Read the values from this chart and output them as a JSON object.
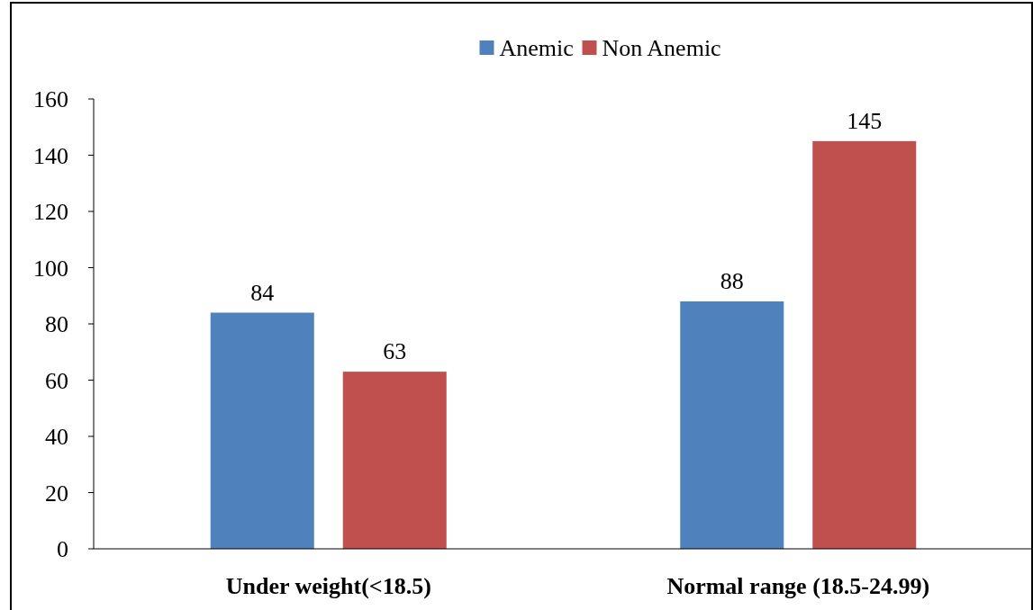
{
  "chart_data": {
    "type": "bar",
    "categories": [
      "Under weight(<18.5)",
      "Normal range (18.5-24.99)"
    ],
    "series": [
      {
        "name": "Anemic",
        "color": "#4f81bd",
        "values": [
          84,
          88
        ]
      },
      {
        "name": "Non Anemic",
        "color": "#c0504d",
        "values": [
          63,
          145
        ]
      }
    ],
    "ylim": [
      0,
      160
    ],
    "yticks": [
      0,
      20,
      40,
      60,
      80,
      100,
      120,
      140,
      160
    ],
    "data_labels": true,
    "legend": "top",
    "grid": false
  }
}
